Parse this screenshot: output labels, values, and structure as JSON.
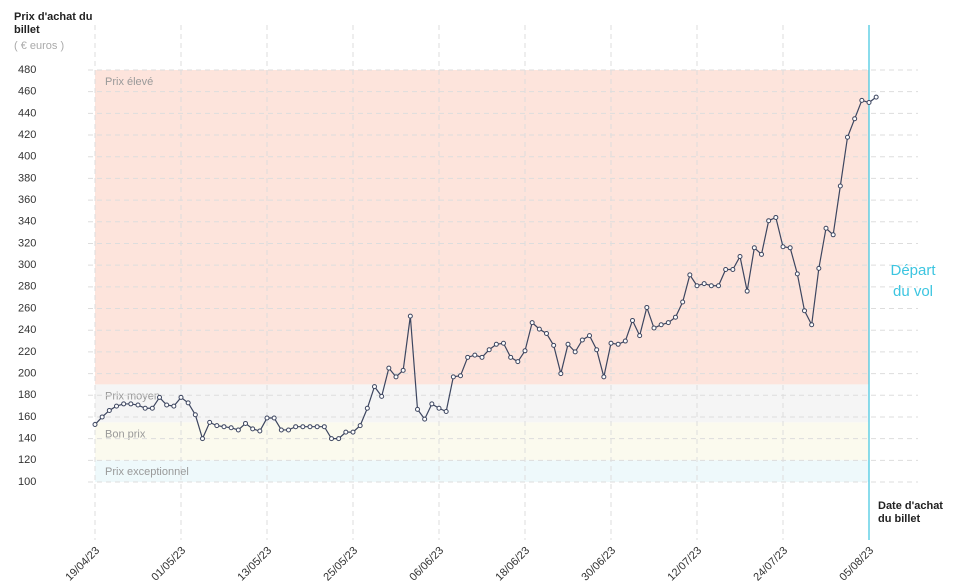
{
  "chart_data": {
    "type": "line",
    "y_label": "Prix d'achat du billet",
    "y_unit": "( € euros )",
    "x_label": "Date d'achat du billet",
    "annotation": {
      "text": "Départ du vol",
      "x": "05/08/23",
      "color": "#3cc5e0"
    },
    "bands": [
      {
        "name": "Prix élevé",
        "range": [
          190,
          480
        ],
        "color": "#fde4dc"
      },
      {
        "name": "Prix moyen",
        "range": [
          155,
          190
        ],
        "color": "#f5f5f5"
      },
      {
        "name": "Bon prix",
        "range": [
          120,
          155
        ],
        "color": "#fbfaee"
      },
      {
        "name": "Prix exceptionnel",
        "range": [
          100,
          120
        ],
        "color": "#eef9fb"
      }
    ],
    "x": [
      "19/04/23",
      "20/04/23",
      "21/04/23",
      "22/04/23",
      "23/04/23",
      "24/04/23",
      "25/04/23",
      "26/04/23",
      "27/04/23",
      "28/04/23",
      "29/04/23",
      "30/04/23",
      "01/05/23",
      "02/05/23",
      "03/05/23",
      "04/05/23",
      "05/05/23",
      "06/05/23",
      "07/05/23",
      "08/05/23",
      "09/05/23",
      "10/05/23",
      "11/05/23",
      "12/05/23",
      "13/05/23",
      "14/05/23",
      "15/05/23",
      "16/05/23",
      "17/05/23",
      "18/05/23",
      "19/05/23",
      "20/05/23",
      "21/05/23",
      "22/05/23",
      "23/05/23",
      "24/05/23",
      "25/05/23",
      "26/05/23",
      "27/05/23",
      "28/05/23",
      "29/05/23",
      "30/05/23",
      "31/05/23",
      "01/06/23",
      "02/06/23",
      "03/06/23",
      "04/06/23",
      "05/06/23",
      "06/06/23",
      "07/06/23",
      "08/06/23",
      "09/06/23",
      "10/06/23",
      "11/06/23",
      "12/06/23",
      "13/06/23",
      "14/06/23",
      "15/06/23",
      "16/06/23",
      "17/06/23",
      "18/06/23",
      "19/06/23",
      "20/06/23",
      "21/06/23",
      "22/06/23",
      "23/06/23",
      "24/06/23",
      "25/06/23",
      "26/06/23",
      "27/06/23",
      "28/06/23",
      "29/06/23",
      "30/06/23",
      "01/07/23",
      "02/07/23",
      "03/07/23",
      "04/07/23",
      "05/07/23",
      "06/07/23",
      "07/07/23",
      "08/07/23",
      "09/07/23",
      "10/07/23",
      "11/07/23",
      "12/07/23",
      "13/07/23",
      "14/07/23",
      "15/07/23",
      "16/07/23",
      "17/07/23",
      "18/07/23",
      "19/07/23",
      "20/07/23",
      "21/07/23",
      "22/07/23",
      "23/07/23",
      "24/07/23",
      "25/07/23",
      "26/07/23",
      "27/07/23",
      "28/07/23",
      "29/07/23",
      "30/07/23",
      "31/07/23",
      "01/08/23",
      "02/08/23",
      "03/08/23",
      "04/08/23",
      "05/08/23",
      "06/08/23"
    ],
    "series": [
      {
        "color": "#3d4660",
        "values": [
          153,
          160,
          166,
          170,
          172,
          172,
          171,
          168,
          168,
          178,
          171,
          170,
          178,
          173,
          162,
          140,
          155,
          152,
          151,
          150,
          148,
          154,
          149,
          147,
          159,
          159,
          148,
          148,
          151,
          151,
          151,
          151,
          151,
          140,
          140,
          146,
          146,
          152,
          168,
          188,
          179,
          205,
          197,
          203,
          253,
          167,
          158,
          172,
          168,
          165,
          197,
          198,
          215,
          217,
          215,
          222,
          227,
          228,
          215,
          211,
          221,
          247,
          241,
          237,
          226,
          200,
          227,
          220,
          231,
          235,
          222,
          197,
          228,
          227,
          230,
          249,
          235,
          261,
          242,
          245,
          247,
          252,
          266,
          291,
          281,
          283,
          281,
          281,
          296,
          296,
          308,
          276,
          316,
          310,
          341,
          344,
          317,
          316,
          292,
          258,
          245,
          297,
          334,
          328,
          373,
          418,
          435,
          452,
          450,
          455
        ]
      }
    ],
    "xlim": [
      "19/04/23",
      "05/08/23"
    ],
    "xticks": [
      "19/04/23",
      "01/05/23",
      "13/05/23",
      "25/05/23",
      "06/06/23",
      "18/06/23",
      "30/06/23",
      "12/07/23",
      "24/07/23",
      "05/08/23"
    ],
    "ylim": [
      100,
      480
    ],
    "yticks": [
      100,
      120,
      140,
      160,
      180,
      200,
      220,
      240,
      260,
      280,
      300,
      320,
      340,
      360,
      380,
      400,
      420,
      440,
      460,
      480
    ],
    "grid": true
  }
}
